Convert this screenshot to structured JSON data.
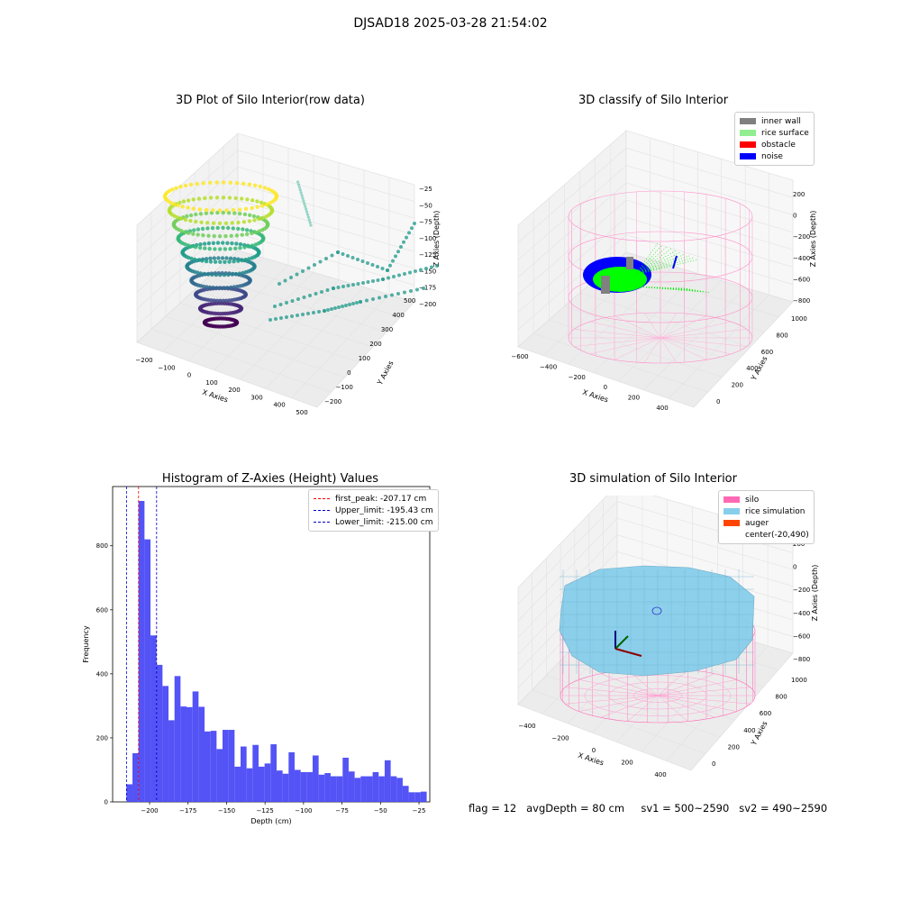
{
  "suptitle": "DJSAD18 2025-03-28 21:54:02",
  "footer": "flag = 12   avgDepth = 80 cm     sv1 = 500~2590   sv2 = 490~2590",
  "chart_data": [
    {
      "type": "scatter3d",
      "title": "3D Plot of Silo Interior(row data)",
      "xlabel": "X Axies",
      "ylabel": "Y Axies",
      "zlabel": "Z Axies (Depth)",
      "x_ticks": [
        "−200",
        "−100",
        "0",
        "100",
        "200",
        "300",
        "400",
        "500"
      ],
      "y_ticks": [
        "−200",
        "−100",
        "0",
        "100",
        "200",
        "300",
        "400",
        "500"
      ],
      "z_ticks": [
        "−25",
        "−50",
        "−75",
        "−100",
        "−125",
        "−150",
        "−175",
        "−200"
      ],
      "colormap": "viridis",
      "zlim": [
        -215,
        -20
      ]
    },
    {
      "type": "scatter3d",
      "title": "3D classify of Silo Interior",
      "xlabel": "X Axies",
      "ylabel": "Y Axies",
      "zlabel": "Z Axies (Depth)",
      "x_ticks": [
        "−600",
        "−400",
        "−200",
        "0",
        "200",
        "400"
      ],
      "y_ticks": [
        "0",
        "200",
        "400",
        "600",
        "800",
        "1000"
      ],
      "z_ticks": [
        "200",
        "0",
        "−200",
        "−400",
        "−600",
        "−800"
      ],
      "legend": [
        {
          "label": "inner wall",
          "color": "#808080"
        },
        {
          "label": "rice surface",
          "color": "#90ee90"
        },
        {
          "label": "obstacle",
          "color": "#ff0000"
        },
        {
          "label": "noise",
          "color": "#0000ff"
        }
      ]
    },
    {
      "type": "bar",
      "title": "Histogram of Z-Axies (Height) Values",
      "xlabel": "Depth (cm)",
      "ylabel": "Frequency",
      "xlim": [
        -224,
        -18
      ],
      "ylim": [
        0,
        985
      ],
      "x_ticks": [
        -200,
        -175,
        -150,
        -125,
        -100,
        -75,
        -50,
        -25
      ],
      "y_ticks": [
        0,
        200,
        400,
        600,
        800
      ],
      "bin_start": -215,
      "bin_width": 3.9,
      "values": [
        55,
        152,
        940,
        820,
        520,
        428,
        362,
        255,
        393,
        298,
        296,
        345,
        297,
        220,
        222,
        165,
        225,
        225,
        110,
        173,
        105,
        178,
        110,
        120,
        180,
        98,
        88,
        155,
        100,
        93,
        93,
        145,
        85,
        90,
        80,
        80,
        138,
        95,
        75,
        80,
        80,
        93,
        80,
        130,
        80,
        75,
        50,
        30,
        30,
        32
      ],
      "vlines": [
        {
          "x": -207.17,
          "color": "#ff0000",
          "label": "first_peak: -207.17 cm"
        },
        {
          "x": -195.43,
          "color": "#0000cc",
          "label": "Upper_limit: -195.43 cm"
        },
        {
          "x": -215.0,
          "color": "#0000cc",
          "label": "Lower_limit: -215.00 cm"
        }
      ],
      "bar_color": "#4a4af5"
    },
    {
      "type": "surface3d",
      "title": "3D simulation of Silo Interior",
      "xlabel": "X Axies",
      "ylabel": "Y Axies",
      "zlabel": "Z Axies (Depth)",
      "x_ticks": [
        "−400",
        "−200",
        "0",
        "200",
        "400"
      ],
      "y_ticks": [
        "0",
        "200",
        "400",
        "600",
        "800",
        "1000"
      ],
      "z_ticks": [
        "200",
        "0",
        "−200",
        "−400",
        "−600",
        "−800"
      ],
      "legend": [
        {
          "label": "silo",
          "color": "#ff69b4"
        },
        {
          "label": "rice simulation",
          "color": "#87ceeb"
        },
        {
          "label": "auger",
          "color": "#ff4500"
        },
        {
          "label": "center(-20,490)",
          "color": ""
        }
      ]
    }
  ]
}
